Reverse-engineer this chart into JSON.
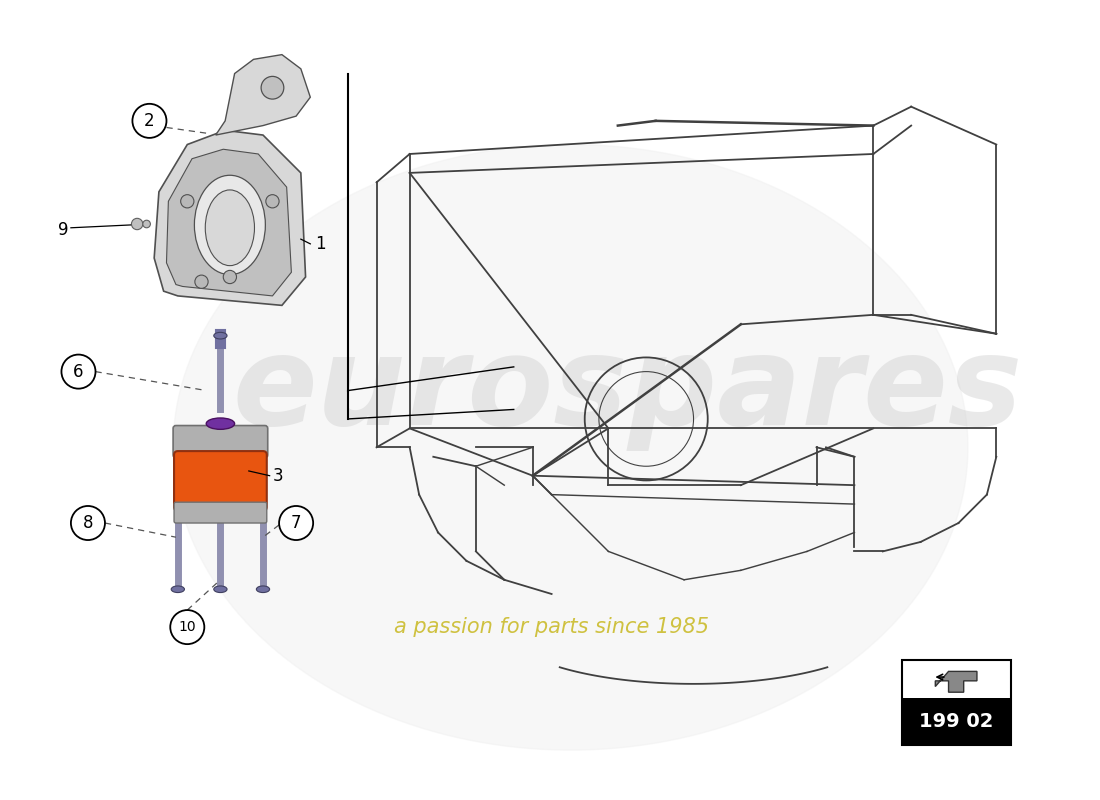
{
  "background_color": "#ffffff",
  "page_code": "199 02",
  "watermark_text1": "eurospares",
  "watermark_text2": "a passion for parts since 1985",
  "colors": {
    "bracket_stroke": "#505050",
    "bracket_fill": "#d8d8d8",
    "bracket_fill2": "#c0c0c0",
    "mount_orange": "#e85510",
    "mount_gray_top": "#a8a8a8",
    "mount_gray_side": "#888888",
    "mount_purple": "#7030a0",
    "bolt_color": "#9090b0",
    "bolt_head": "#7070a0",
    "frame_stroke": "#404040",
    "label_circle_color": "#000000",
    "dashed_line_color": "#555555",
    "watermark_color1": "#d0d0d0",
    "watermark_color2": "#c8b820"
  }
}
